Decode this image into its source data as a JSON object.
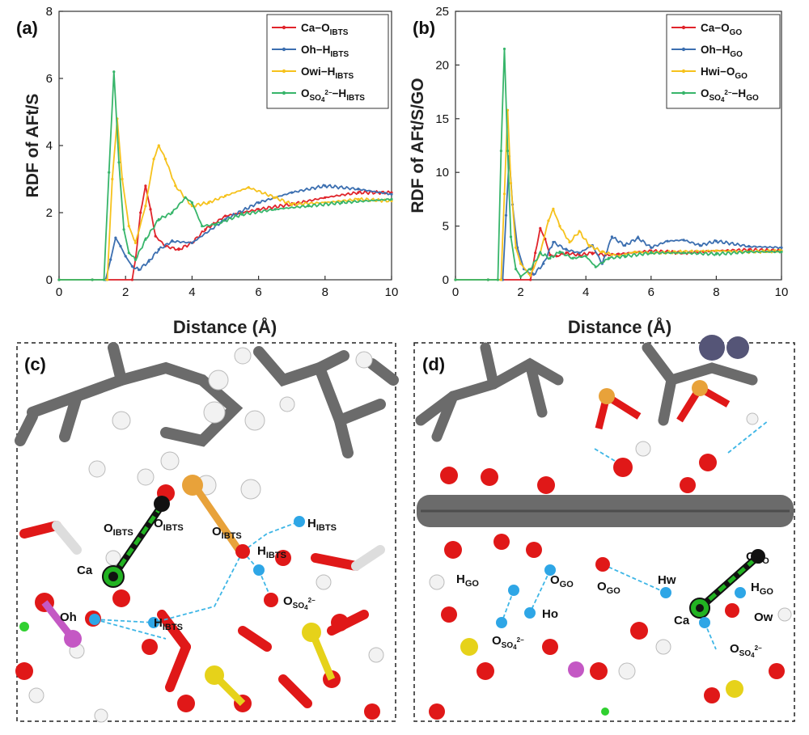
{
  "chart_data": [
    {
      "panel": "(a)",
      "type": "line",
      "xlabel": "Distance (Å)",
      "ylabel": "RDF of AFt/S",
      "xlim": [
        0,
        10
      ],
      "ylim": [
        0,
        8
      ],
      "xticks": [
        "0",
        "2",
        "4",
        "6",
        "8",
        "10"
      ],
      "yticks": [
        "0",
        "2",
        "4",
        "6",
        "8"
      ],
      "legend_position": "top-right",
      "series": [
        {
          "name": "Ca−O",
          "sub": "IBTS",
          "sup": "",
          "color": "#e0242b",
          "x": [
            0,
            1.0,
            2.2,
            2.3,
            2.45,
            2.6,
            2.75,
            2.9,
            3.2,
            3.6,
            4.0,
            4.4,
            5.0,
            6.0,
            7.0,
            8.0,
            9.0,
            10.0
          ],
          "y": [
            0,
            0,
            0,
            0.6,
            2.0,
            2.8,
            2.1,
            1.3,
            1.0,
            0.9,
            1.1,
            1.5,
            1.9,
            2.1,
            2.25,
            2.45,
            2.6,
            2.6
          ]
        },
        {
          "name": "Oh−H",
          "sub": "IBTS",
          "sup": "",
          "color": "#3c6fb0",
          "x": [
            0,
            1.0,
            1.4,
            1.55,
            1.7,
            1.85,
            2.0,
            2.2,
            2.4,
            2.7,
            3.0,
            3.4,
            4.0,
            5.0,
            6.0,
            7.0,
            8.0,
            9.0,
            10.0
          ],
          "y": [
            0,
            0,
            0,
            0.6,
            1.25,
            1.0,
            0.7,
            0.4,
            0.3,
            0.55,
            0.9,
            1.15,
            1.1,
            1.8,
            2.3,
            2.6,
            2.8,
            2.7,
            2.55
          ]
        },
        {
          "name": "Owi−H",
          "sub": "IBTS",
          "sup": "",
          "color": "#f6c21c",
          "x": [
            0,
            1.0,
            1.45,
            1.6,
            1.75,
            1.9,
            2.1,
            2.3,
            2.6,
            2.85,
            3.0,
            3.2,
            3.5,
            4.0,
            4.5,
            5.0,
            5.7,
            6.5,
            7.0,
            8.0,
            9.0,
            10.0
          ],
          "y": [
            0,
            0,
            0,
            3.0,
            4.8,
            3.0,
            1.6,
            1.1,
            2.2,
            3.6,
            4.0,
            3.6,
            2.8,
            2.2,
            2.3,
            2.5,
            2.75,
            2.45,
            2.25,
            2.3,
            2.4,
            2.35
          ]
        },
        {
          "name": "O",
          "sub": "SO",
          "sup": "2−",
          "sub2": "4",
          "tail": "−H",
          "tailsub": "IBTS",
          "color": "#37b56a",
          "x": [
            0,
            1.0,
            1.35,
            1.5,
            1.65,
            1.8,
            1.95,
            2.1,
            2.3,
            2.6,
            3.0,
            3.4,
            3.8,
            4.0,
            4.3,
            4.7,
            5.5,
            6.5,
            7.5,
            8.5,
            10.0
          ],
          "y": [
            0,
            0,
            0,
            3.2,
            6.2,
            3.5,
            1.5,
            0.8,
            0.6,
            1.2,
            1.8,
            2.0,
            2.45,
            2.3,
            1.6,
            1.65,
            1.95,
            2.1,
            2.2,
            2.3,
            2.4
          ]
        }
      ]
    },
    {
      "panel": "(b)",
      "type": "line",
      "xlabel": "Distance (Å)",
      "ylabel": "RDF of AFt/S/GO",
      "xlim": [
        0,
        10
      ],
      "ylim": [
        0,
        25
      ],
      "xticks": [
        "0",
        "2",
        "4",
        "6",
        "8",
        "10"
      ],
      "yticks": [
        "0",
        "5",
        "10",
        "15",
        "20",
        "25"
      ],
      "legend_position": "top-right",
      "series": [
        {
          "name": "Ca−O",
          "sub": "GO",
          "sup": "",
          "color": "#e0242b",
          "x": [
            0,
            1.0,
            2.3,
            2.45,
            2.6,
            2.75,
            2.9,
            3.1,
            3.4,
            3.8,
            4.2,
            4.6,
            5.0,
            6.0,
            7.0,
            8.0,
            9.0,
            10.0
          ],
          "y": [
            0,
            0,
            0,
            2.5,
            4.8,
            3.8,
            2.3,
            2.2,
            2.5,
            2.3,
            2.5,
            2.3,
            2.4,
            2.7,
            2.5,
            2.7,
            2.8,
            2.7
          ]
        },
        {
          "name": "Oh−H",
          "sub": "GO",
          "sup": "",
          "color": "#3c6fb0",
          "x": [
            0,
            1.0,
            1.45,
            1.55,
            1.65,
            1.75,
            1.9,
            2.1,
            2.4,
            2.7,
            3.0,
            3.4,
            3.8,
            4.2,
            4.5,
            4.8,
            5.2,
            5.6,
            6.0,
            6.5,
            7.0,
            7.5,
            8.0,
            9.0,
            10.0
          ],
          "y": [
            0,
            0,
            0,
            6.0,
            11.5,
            7.0,
            3.0,
            1.0,
            0.5,
            1.5,
            3.5,
            2.8,
            2.5,
            3.2,
            1.5,
            4.0,
            3.2,
            3.9,
            3.0,
            3.6,
            3.7,
            3.2,
            3.6,
            3.1,
            3.0
          ]
        },
        {
          "name": "Hwi−O",
          "sub": "GO",
          "sup": "",
          "color": "#f6c21c",
          "x": [
            0,
            1.0,
            1.4,
            1.5,
            1.6,
            1.7,
            1.85,
            2.0,
            2.3,
            2.6,
            2.85,
            3.0,
            3.2,
            3.5,
            3.8,
            4.1,
            4.5,
            5.0,
            5.5,
            6.0,
            7.0,
            8.0,
            9.0,
            10.0
          ],
          "y": [
            0,
            0,
            0,
            8.0,
            15.8,
            9.0,
            3.0,
            1.5,
            0.4,
            2.5,
            5.5,
            6.6,
            5.0,
            3.5,
            4.5,
            3.2,
            2.6,
            2.2,
            2.6,
            2.5,
            2.6,
            2.7,
            2.6,
            2.7
          ]
        },
        {
          "name": "O",
          "sub": "SO",
          "sup": "2−",
          "sub2": "4",
          "tail": "−H",
          "tailsub": "GO",
          "color": "#37b56a",
          "x": [
            0,
            1.0,
            1.3,
            1.4,
            1.5,
            1.6,
            1.7,
            1.85,
            2.0,
            2.3,
            2.6,
            2.9,
            3.2,
            3.6,
            4.0,
            4.3,
            4.7,
            5.2,
            6.0,
            7.0,
            8.0,
            9.0,
            10.0
          ],
          "y": [
            0,
            0,
            0,
            12.0,
            21.5,
            12.0,
            4.0,
            1.0,
            0.3,
            1.0,
            2.5,
            2.0,
            2.6,
            2.0,
            2.2,
            1.2,
            2.0,
            2.2,
            2.5,
            2.5,
            2.4,
            2.6,
            2.6
          ]
        }
      ]
    }
  ],
  "panels": {
    "c": {
      "label": "(c)",
      "annotations": [
        {
          "main": "O",
          "sub": "IBTS",
          "sup": ""
        },
        {
          "main": "Ca",
          "sub": "",
          "sup": ""
        },
        {
          "main": "O",
          "sub": "IBTS",
          "sup": ""
        },
        {
          "main": "O",
          "sub": "IBTS",
          "sup": ""
        },
        {
          "main": "H",
          "sub": "IBTS",
          "sup": ""
        },
        {
          "main": "H",
          "sub": "IBTS",
          "sup": ""
        },
        {
          "main": "H",
          "sub": "IBTS",
          "sup": ""
        },
        {
          "main": "Oh",
          "sub": "",
          "sup": ""
        },
        {
          "main": "O",
          "sub": "SO",
          "sup": "2−",
          "sub2": "4"
        }
      ]
    },
    "d": {
      "label": "(d)",
      "annotations": [
        {
          "main": "O",
          "sub": "GO",
          "sup": ""
        },
        {
          "main": "H",
          "sub": "GO",
          "sup": ""
        },
        {
          "main": "O",
          "sub": "GO",
          "sup": ""
        },
        {
          "main": "O",
          "sub": "GO",
          "sup": ""
        },
        {
          "main": "Hw",
          "sub": "",
          "sup": ""
        },
        {
          "main": "H",
          "sub": "GO",
          "sup": ""
        },
        {
          "main": "Ho",
          "sub": "",
          "sup": ""
        },
        {
          "main": "Ca",
          "sub": "",
          "sup": ""
        },
        {
          "main": "Ow",
          "sub": "",
          "sup": ""
        },
        {
          "main": "O",
          "sub": "SO",
          "sup": "2−",
          "sub2": "4"
        },
        {
          "main": "O",
          "sub": "SO",
          "sup": "2−",
          "sub2": "4"
        }
      ]
    }
  }
}
